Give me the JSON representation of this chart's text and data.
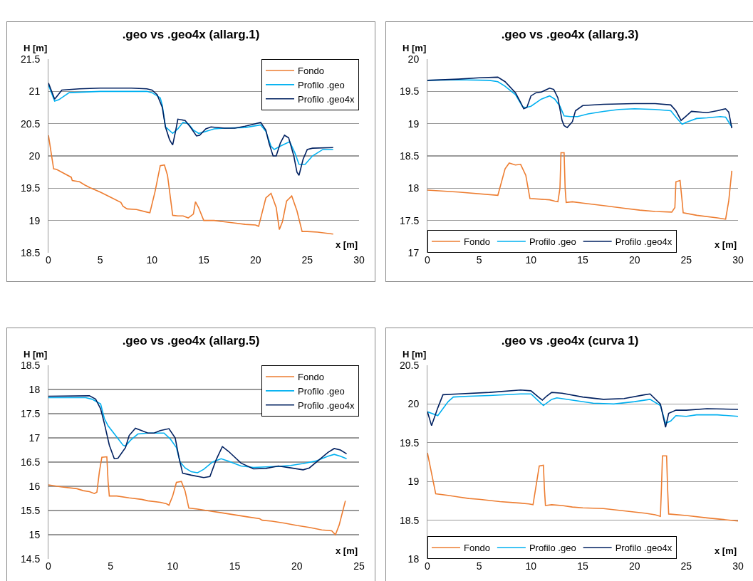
{
  "chart_data": [
    {
      "type": "line",
      "title": ".geo vs .geo4x (allarg.1)",
      "xlabel": "x [m]",
      "ylabel": "H [m]",
      "xlim": [
        0,
        30
      ],
      "xticks": [
        0,
        5,
        10,
        15,
        20,
        25,
        30
      ],
      "ylim": [
        18.5,
        21.5
      ],
      "yticks": [
        18.5,
        19,
        19.5,
        20,
        20.5,
        21,
        21.5
      ],
      "grid": "y",
      "legend": "top right",
      "series": [
        {
          "name": "Fondo",
          "color": "#ed7d31",
          "x": [
            0,
            0.5,
            0.8,
            1.5,
            2.2,
            2.3,
            3,
            3.5,
            4,
            5,
            6,
            7,
            7.2,
            7.6,
            8.5,
            9.5,
            9.8,
            10.3,
            10.8,
            11.2,
            11.5,
            12,
            12.5,
            13,
            13.5,
            14,
            14.2,
            14.5,
            15,
            16,
            17,
            18,
            19,
            20,
            20.3,
            21,
            21.5,
            22,
            22.3,
            22.6,
            23,
            23.5,
            24,
            24.5,
            25,
            26,
            27.5
          ],
          "values": [
            20.32,
            19.8,
            19.79,
            19.73,
            19.67,
            19.62,
            19.6,
            19.55,
            19.51,
            19.44,
            19.36,
            19.28,
            19.22,
            19.18,
            19.17,
            19.13,
            19.12,
            19.45,
            19.85,
            19.86,
            19.7,
            19.08,
            19.07,
            19.07,
            19.04,
            19.1,
            19.29,
            19.2,
            19.0,
            19.0,
            18.98,
            18.96,
            18.94,
            18.93,
            18.91,
            19.35,
            19.42,
            19.2,
            18.86,
            18.98,
            19.3,
            19.38,
            19.15,
            18.83,
            18.83,
            18.82,
            18.79
          ]
        },
        {
          "name": "Profilo .geo",
          "color": "#00b0f0",
          "x": [
            0,
            0.6,
            1,
            2,
            5,
            9.5,
            10,
            10.8,
            11,
            11.3,
            12,
            12.5,
            13,
            13.5,
            14,
            14.5,
            15,
            16,
            17,
            19,
            20.5,
            21,
            21.5,
            21.8,
            22.5,
            23.3,
            23.8,
            24.2,
            24.8,
            25.5,
            26.5,
            27.5
          ],
          "values": [
            21.1,
            20.85,
            20.87,
            20.98,
            21.0,
            21.0,
            20.98,
            20.9,
            20.78,
            20.45,
            20.35,
            20.42,
            20.52,
            20.5,
            20.4,
            20.35,
            20.37,
            20.42,
            20.43,
            20.44,
            20.48,
            20.38,
            20.15,
            20.1,
            20.16,
            20.22,
            20.05,
            19.87,
            19.87,
            20.0,
            20.1,
            20.1
          ]
        },
        {
          "name": "Profilo .geo4x",
          "color": "#002060",
          "x": [
            0,
            0.6,
            1.3,
            3,
            5,
            8,
            9.5,
            10,
            10.5,
            11,
            11.3,
            11.7,
            12,
            12.3,
            12.5,
            13.2,
            13.7,
            14.3,
            14.6,
            15.2,
            15.7,
            17,
            18,
            19,
            20,
            20.5,
            21,
            21.3,
            21.7,
            22,
            22.4,
            22.8,
            23.2,
            23.7,
            24,
            24.2,
            24.6,
            25,
            25.5,
            27.5
          ],
          "values": [
            21.13,
            20.88,
            21.02,
            21.04,
            21.05,
            21.05,
            21.04,
            21.02,
            20.95,
            20.75,
            20.45,
            20.25,
            20.17,
            20.4,
            20.57,
            20.55,
            20.45,
            20.31,
            20.32,
            20.42,
            20.45,
            20.43,
            20.43,
            20.46,
            20.5,
            20.52,
            20.4,
            20.2,
            20.0,
            20.0,
            20.2,
            20.32,
            20.28,
            20.0,
            19.75,
            19.7,
            19.95,
            20.1,
            20.12,
            20.13
          ]
        }
      ]
    },
    {
      "type": "line",
      "title": ".geo vs .geo4x (allarg.3)",
      "xlabel": "x [m]",
      "ylabel": "H [m]",
      "xlim": [
        0,
        30
      ],
      "xticks": [
        0,
        5,
        10,
        15,
        20,
        25,
        30
      ],
      "ylim": [
        17,
        20
      ],
      "yticks": [
        17,
        17.5,
        18,
        18.5,
        19,
        19.5,
        20
      ],
      "grid": "y",
      "legend": "bottom",
      "series": [
        {
          "name": "Fondo",
          "color": "#ed7d31",
          "x": [
            0,
            3,
            6.8,
            7.5,
            7.9,
            8.5,
            9,
            9.5,
            9.9,
            11.8,
            12.3,
            12.6,
            12.8,
            12.9,
            13.2,
            13.3,
            13.4,
            14,
            15,
            17,
            19,
            20.5,
            22,
            23.6,
            23.9,
            24,
            24.4,
            24.6,
            24.7,
            26,
            28,
            28.8,
            29.1,
            29.4
          ],
          "values": [
            17.97,
            17.94,
            17.89,
            18.3,
            18.39,
            18.36,
            18.37,
            18.2,
            17.84,
            17.82,
            17.8,
            17.79,
            18.0,
            18.55,
            18.55,
            18.0,
            17.78,
            17.79,
            17.77,
            17.73,
            17.69,
            17.66,
            17.64,
            17.63,
            17.7,
            18.1,
            18.12,
            17.8,
            17.62,
            17.58,
            17.54,
            17.52,
            17.8,
            18.27
          ]
        },
        {
          "name": "Profilo .geo",
          "color": "#00b0f0",
          "x": [
            0,
            3,
            6,
            6.8,
            7.5,
            8.5,
            9.2,
            9.5,
            10,
            11,
            11.8,
            12.3,
            12.8,
            13.2,
            13.8,
            14.5,
            15.5,
            17,
            18.5,
            20,
            22,
            23.5,
            24,
            24.6,
            25,
            26,
            27,
            28.3,
            28.8,
            29.4
          ],
          "values": [
            19.67,
            19.68,
            19.67,
            19.65,
            19.58,
            19.45,
            19.26,
            19.25,
            19.27,
            19.38,
            19.43,
            19.38,
            19.27,
            19.12,
            19.11,
            19.11,
            19.15,
            19.19,
            19.22,
            19.23,
            19.22,
            19.2,
            19.1,
            18.99,
            19.02,
            19.08,
            19.09,
            19.11,
            19.1,
            18.95
          ]
        },
        {
          "name": "Profilo .geo4x",
          "color": "#002060",
          "x": [
            0,
            3,
            5,
            6.8,
            7.5,
            8.5,
            9,
            9.3,
            9.6,
            10,
            10.5,
            11,
            11.8,
            12.2,
            12.6,
            13,
            13.2,
            13.5,
            14,
            14.3,
            15,
            17,
            20,
            22,
            23.5,
            24,
            24.5,
            25,
            25.5,
            27,
            28,
            28.8,
            29.1,
            29.4
          ],
          "values": [
            19.67,
            19.69,
            19.71,
            19.72,
            19.65,
            19.48,
            19.33,
            19.23,
            19.25,
            19.43,
            19.48,
            19.49,
            19.55,
            19.53,
            19.4,
            19.05,
            18.97,
            18.94,
            19.03,
            19.2,
            19.28,
            19.3,
            19.31,
            19.31,
            19.29,
            19.2,
            19.05,
            19.12,
            19.19,
            19.17,
            19.2,
            19.23,
            19.18,
            18.93
          ]
        }
      ]
    },
    {
      "type": "line",
      "title": ".geo vs .geo4x (allarg.5)",
      "xlabel": "x [m]",
      "ylabel": "H [m]",
      "xlim": [
        0,
        25
      ],
      "xticks": [
        0,
        5,
        10,
        15,
        20,
        25
      ],
      "ylim": [
        14.5,
        18.5
      ],
      "yticks": [
        14.5,
        15,
        15.5,
        16,
        16.5,
        17,
        17.5,
        18,
        18.5
      ],
      "grid": "y",
      "legend": "top right",
      "series": [
        {
          "name": "Fondo",
          "color": "#ed7d31",
          "x": [
            0,
            1,
            2.3,
            2.8,
            3.3,
            3.7,
            3.9,
            4.1,
            4.3,
            4.7,
            4.8,
            4.9,
            5.5,
            6.5,
            7.5,
            8,
            9,
            9.5,
            9.7,
            10,
            10.3,
            10.7,
            11,
            11.3,
            12,
            13,
            14,
            15,
            16,
            17,
            17.2,
            18,
            19,
            20,
            21,
            22,
            22.8,
            23.1,
            23.4,
            23.9
          ],
          "values": [
            16.03,
            15.99,
            15.95,
            15.91,
            15.89,
            15.85,
            15.88,
            16.3,
            16.6,
            16.61,
            16.1,
            15.8,
            15.8,
            15.76,
            15.73,
            15.7,
            15.67,
            15.64,
            15.61,
            15.8,
            16.08,
            16.1,
            15.9,
            15.55,
            15.53,
            15.49,
            15.45,
            15.41,
            15.37,
            15.33,
            15.3,
            15.28,
            15.24,
            15.19,
            15.15,
            15.1,
            15.08,
            15.0,
            15.2,
            15.7
          ]
        },
        {
          "name": "Profilo .geo",
          "color": "#00b0f0",
          "x": [
            0,
            3,
            3.5,
            4.2,
            4.5,
            4.8,
            5.5,
            6,
            6.2,
            6.6,
            7.2,
            8,
            9,
            9.3,
            9.8,
            10.3,
            10.6,
            11,
            11.5,
            12,
            12.5,
            13.2,
            13.9,
            14.5,
            15.5,
            16.5,
            17.5,
            18.5,
            19.5,
            20.5,
            21.5,
            22.5,
            23,
            23.5,
            24
          ],
          "values": [
            17.83,
            17.83,
            17.8,
            17.7,
            17.4,
            17.25,
            17.02,
            16.85,
            16.83,
            16.95,
            17.08,
            17.1,
            17.1,
            17.1,
            16.98,
            16.8,
            16.5,
            16.38,
            16.3,
            16.28,
            16.35,
            16.5,
            16.57,
            16.52,
            16.42,
            16.39,
            16.4,
            16.41,
            16.43,
            16.47,
            16.52,
            16.62,
            16.66,
            16.62,
            16.57
          ]
        },
        {
          "name": "Profilo .geo4x",
          "color": "#002060",
          "x": [
            0,
            3.3,
            3.8,
            4.2,
            4.5,
            4.9,
            5.3,
            5.6,
            6.2,
            6.5,
            7,
            7.5,
            8,
            8.5,
            9,
            9.7,
            10.2,
            10.5,
            10.8,
            11.5,
            12.5,
            13,
            13.5,
            14,
            14.5,
            15.5,
            16.5,
            17.5,
            18.5,
            19.5,
            20.5,
            21,
            21.8,
            22.5,
            23,
            23.5,
            24
          ],
          "values": [
            17.86,
            17.87,
            17.8,
            17.6,
            17.3,
            16.85,
            16.57,
            16.58,
            16.8,
            17.05,
            17.2,
            17.15,
            17.1,
            17.1,
            17.15,
            17.19,
            17.0,
            16.6,
            16.27,
            16.23,
            16.18,
            16.2,
            16.55,
            16.82,
            16.72,
            16.48,
            16.36,
            16.37,
            16.42,
            16.38,
            16.34,
            16.38,
            16.55,
            16.7,
            16.78,
            16.75,
            16.67
          ]
        }
      ]
    },
    {
      "type": "line",
      "title": ".geo vs .geo4x (curva 1)",
      "xlabel": "x [m]",
      "ylabel": "H [m]",
      "xlim": [
        0,
        30
      ],
      "xticks": [
        0,
        5,
        10,
        15,
        20,
        25,
        30
      ],
      "ylim": [
        18,
        20.5
      ],
      "yticks": [
        18,
        18.5,
        19,
        19.5,
        20,
        20.5
      ],
      "grid": "y",
      "legend": "bottom",
      "series": [
        {
          "name": "Fondo",
          "color": "#ed7d31",
          "x": [
            0,
            0.8,
            2,
            3,
            4,
            5,
            7,
            9,
            9.8,
            10.2,
            10.5,
            10.8,
            11.2,
            11.3,
            11.4,
            12,
            13,
            14,
            15,
            17,
            19,
            21,
            22,
            22.5,
            22.6,
            22.7,
            23.1,
            23.2,
            23.3,
            25,
            27,
            30
          ],
          "values": [
            19.37,
            18.84,
            18.82,
            18.8,
            18.78,
            18.77,
            18.74,
            18.72,
            18.71,
            18.7,
            18.95,
            19.2,
            19.21,
            18.9,
            18.69,
            18.7,
            18.69,
            18.67,
            18.66,
            18.65,
            18.62,
            18.59,
            18.57,
            18.55,
            18.9,
            19.33,
            19.33,
            18.9,
            18.58,
            18.56,
            18.53,
            18.49
          ]
        },
        {
          "name": "Profilo .geo",
          "color": "#00b0f0",
          "x": [
            0,
            1,
            2,
            2.5,
            4,
            6,
            9,
            10,
            10.8,
            11.2,
            12,
            12.5,
            14,
            16,
            18,
            20,
            21.5,
            22.5,
            23,
            23.5,
            24,
            25,
            26,
            28,
            30
          ],
          "values": [
            19.9,
            19.85,
            20.03,
            20.09,
            20.1,
            20.11,
            20.13,
            20.13,
            20.03,
            19.98,
            20.06,
            20.08,
            20.05,
            20.01,
            20.0,
            20.03,
            20.06,
            19.98,
            19.75,
            19.78,
            19.85,
            19.84,
            19.86,
            19.86,
            19.84
          ]
        },
        {
          "name": "Profilo .geo4x",
          "color": "#002060",
          "x": [
            0,
            0.4,
            1,
            1.5,
            3,
            6,
            9,
            10,
            10.8,
            11.1,
            11.5,
            12,
            13,
            15,
            17,
            19,
            21,
            21.5,
            22.5,
            23,
            23.3,
            24,
            25,
            27,
            30
          ],
          "values": [
            19.9,
            19.72,
            19.95,
            20.12,
            20.13,
            20.15,
            20.18,
            20.17,
            20.08,
            20.05,
            20.1,
            20.15,
            20.14,
            20.09,
            20.06,
            20.07,
            20.12,
            20.13,
            20.0,
            19.7,
            19.88,
            19.92,
            19.92,
            19.94,
            19.93
          ]
        }
      ]
    }
  ]
}
